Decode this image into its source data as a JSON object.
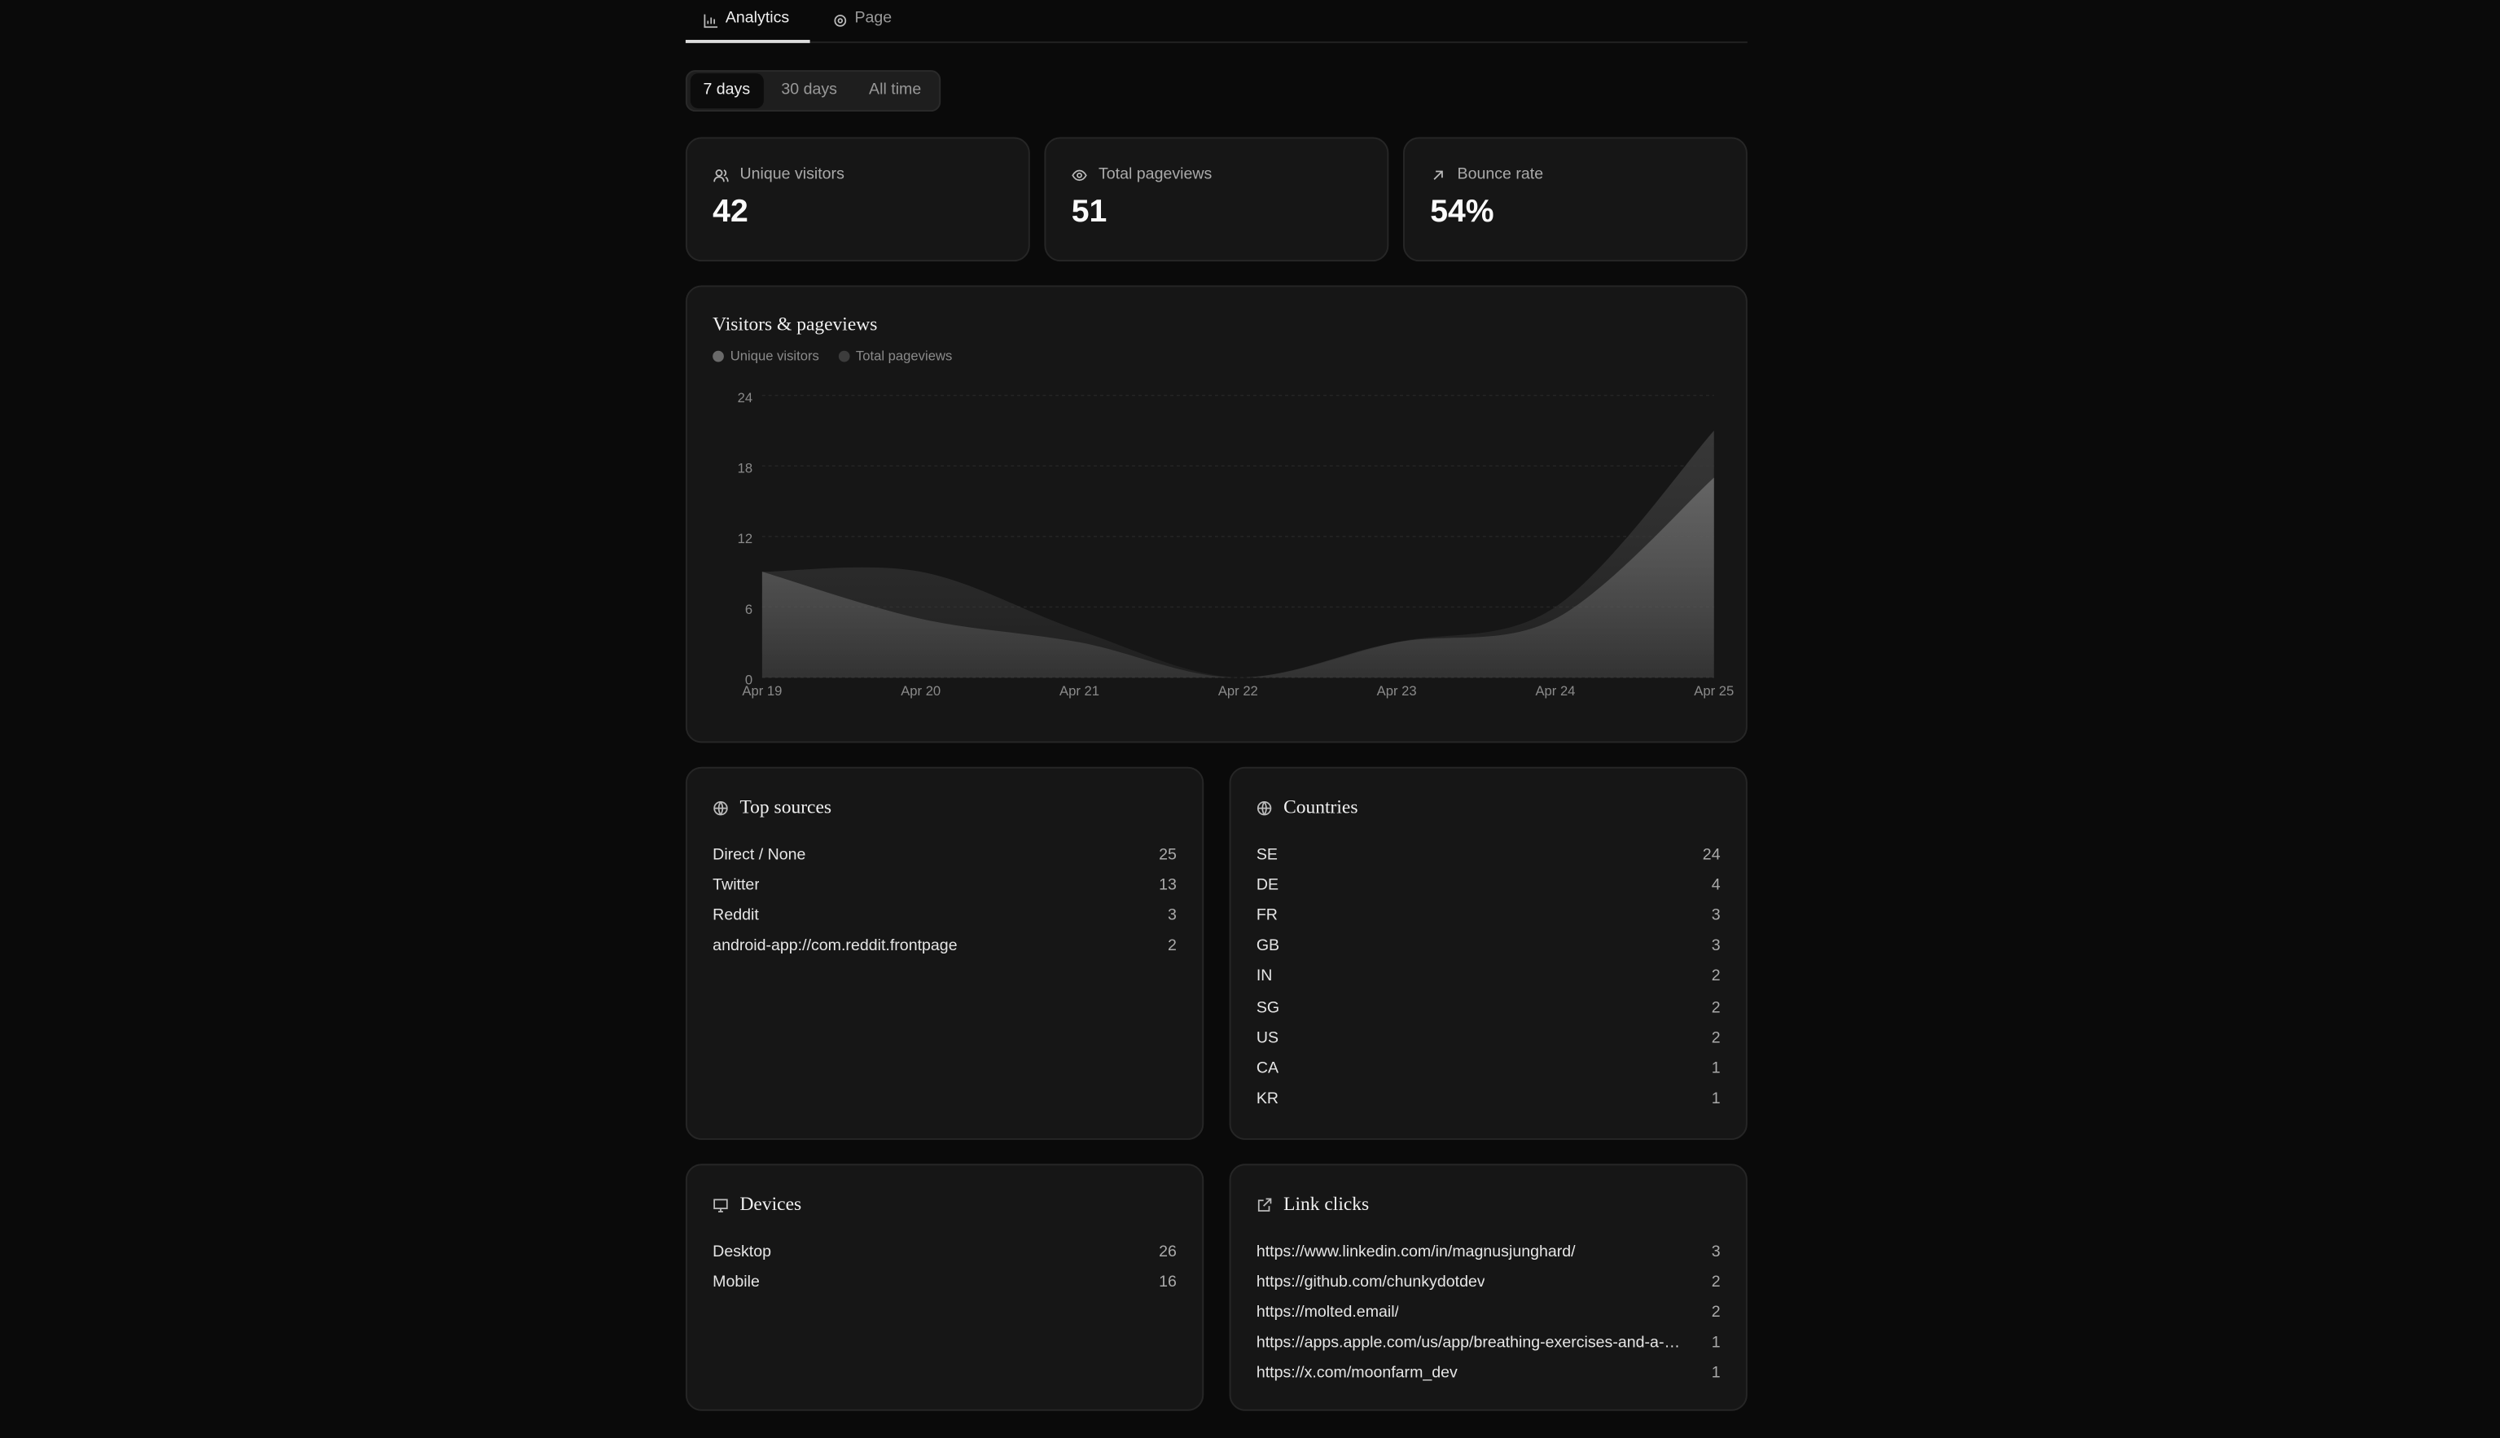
{
  "tabs": [
    "Analytics",
    "Page"
  ],
  "ranges": [
    "7 days",
    "30 days",
    "All time"
  ],
  "stats": [
    {
      "label": "Unique visitors",
      "value": "42"
    },
    {
      "label": "Total pageviews",
      "value": "51"
    },
    {
      "label": "Bounce rate",
      "value": "54%"
    }
  ],
  "chart": {
    "type": "area",
    "title": "Visitors & pageviews",
    "x": [
      "Apr 19",
      "Apr 20",
      "Apr 21",
      "Apr 22",
      "Apr 23",
      "Apr 24",
      "Apr 25"
    ],
    "series": [
      {
        "name": "Unique visitors",
        "color": "#6a6a6a",
        "values": [
          9,
          5,
          3,
          0,
          3,
          5,
          17
        ]
      },
      {
        "name": "Total pageviews",
        "color": "#3c3c3c",
        "values": [
          9,
          9,
          4,
          0,
          3,
          6,
          21
        ]
      }
    ],
    "ylim": [
      0,
      24
    ],
    "yticks": [
      0,
      6,
      12,
      18,
      24
    ],
    "grid": true
  },
  "top_sources": {
    "title": "Top sources",
    "rows": [
      [
        "Direct / None",
        25
      ],
      [
        "Twitter",
        13
      ],
      [
        "Reddit",
        3
      ],
      [
        "android-app://com.reddit.frontpage",
        2
      ]
    ]
  },
  "countries": {
    "title": "Countries",
    "rows": [
      [
        "SE",
        24
      ],
      [
        "DE",
        4
      ],
      [
        "FR",
        3
      ],
      [
        "GB",
        3
      ],
      [
        "IN",
        2
      ],
      [
        "SG",
        2
      ],
      [
        "US",
        2
      ],
      [
        "CA",
        1
      ],
      [
        "KR",
        1
      ]
    ]
  },
  "devices": {
    "title": "Devices",
    "rows": [
      [
        "Desktop",
        26
      ],
      [
        "Mobile",
        16
      ]
    ]
  },
  "link_clicks": {
    "title": "Link clicks",
    "rows": [
      [
        "https://www.linkedin.com/in/magnusjunghard/",
        3
      ],
      [
        "https://github.com/chunkydotdev",
        2
      ],
      [
        "https://molted.email/",
        2
      ],
      [
        "https://apps.apple.com/us/app/breathing-exercises-and-a-…",
        1
      ],
      [
        "https://x.com/moonfarm_dev",
        1
      ]
    ]
  }
}
